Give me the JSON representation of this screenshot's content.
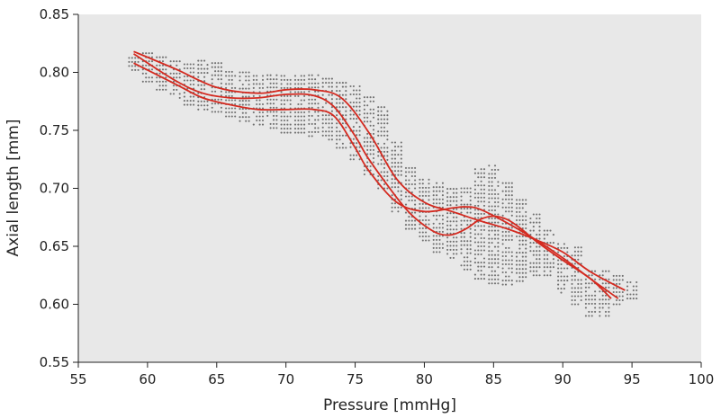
{
  "chart_data": {
    "type": "scatter",
    "title": "",
    "xlabel": "Pressure [mmHg]",
    "ylabel": "Axial length [mm]",
    "xlim": [
      55,
      100
    ],
    "ylim": [
      0.55,
      0.85
    ],
    "xticks": [
      "55",
      "60",
      "65",
      "70",
      "75",
      "80",
      "85",
      "90",
      "95",
      "100"
    ],
    "yticks": [
      "0.55",
      "0.60",
      "0.65",
      "0.70",
      "0.75",
      "0.80",
      "0.85"
    ],
    "grid": false,
    "background_color": "#e8e8e8",
    "point_color": "#707070",
    "line_color": "#d42a20",
    "scatter_bands": [
      {
        "x": [
          59.0,
          60.0,
          61.0,
          62.0,
          63.0,
          64.0,
          65.0,
          66.0,
          67.0,
          68.0,
          69.0,
          70.0,
          71.0,
          72.0,
          73.0,
          74.0,
          75.0,
          76.0,
          77.0,
          78.0,
          79.0,
          80.0,
          81.0,
          82.0,
          83.0,
          84.0,
          85.0,
          86.0,
          87.0,
          88.0,
          89.0,
          90.0,
          91.0,
          92.0,
          93.0,
          94.0,
          95.0
        ],
        "y_low": [
          0.802,
          0.792,
          0.785,
          0.778,
          0.772,
          0.768,
          0.766,
          0.762,
          0.758,
          0.755,
          0.752,
          0.748,
          0.748,
          0.745,
          0.742,
          0.735,
          0.725,
          0.712,
          0.7,
          0.68,
          0.665,
          0.655,
          0.645,
          0.64,
          0.63,
          0.622,
          0.618,
          0.617,
          0.62,
          0.625,
          0.625,
          0.61,
          0.6,
          0.59,
          0.59,
          0.6,
          0.605
        ],
        "y_high": [
          0.815,
          0.817,
          0.815,
          0.812,
          0.81,
          0.81,
          0.808,
          0.803,
          0.8,
          0.8,
          0.8,
          0.8,
          0.8,
          0.798,
          0.795,
          0.792,
          0.788,
          0.78,
          0.77,
          0.74,
          0.72,
          0.71,
          0.705,
          0.7,
          0.7,
          0.718,
          0.72,
          0.705,
          0.69,
          0.68,
          0.665,
          0.655,
          0.65,
          0.63,
          0.63,
          0.625,
          0.62
        ]
      }
    ],
    "series": [
      {
        "x": [
          59,
          62,
          65,
          68,
          70,
          72,
          74,
          76,
          78,
          80,
          82,
          84,
          86,
          88,
          90,
          92,
          94.5
        ],
        "y": [
          0.818,
          0.803,
          0.787,
          0.782,
          0.785,
          0.785,
          0.778,
          0.748,
          0.708,
          0.688,
          0.68,
          0.672,
          0.665,
          0.656,
          0.645,
          0.628,
          0.612
        ]
      },
      {
        "x": [
          59,
          62,
          64,
          66,
          68,
          70,
          72,
          73.5,
          75,
          76,
          78,
          79,
          80,
          81,
          82,
          83,
          84,
          85,
          86,
          87,
          88,
          90,
          92,
          93.5
        ],
        "y": [
          0.816,
          0.793,
          0.782,
          0.778,
          0.778,
          0.781,
          0.78,
          0.77,
          0.745,
          0.725,
          0.692,
          0.678,
          0.668,
          0.661,
          0.66,
          0.665,
          0.673,
          0.676,
          0.673,
          0.665,
          0.655,
          0.638,
          0.622,
          0.605
        ]
      },
      {
        "x": [
          59,
          62,
          64,
          66,
          68,
          70,
          72,
          73.5,
          75,
          76,
          78,
          80,
          82,
          83,
          84,
          86,
          88,
          90,
          92,
          94
        ],
        "y": [
          0.808,
          0.79,
          0.778,
          0.772,
          0.768,
          0.768,
          0.768,
          0.762,
          0.735,
          0.715,
          0.688,
          0.68,
          0.683,
          0.684,
          0.682,
          0.67,
          0.656,
          0.64,
          0.622,
          0.605
        ]
      }
    ]
  }
}
